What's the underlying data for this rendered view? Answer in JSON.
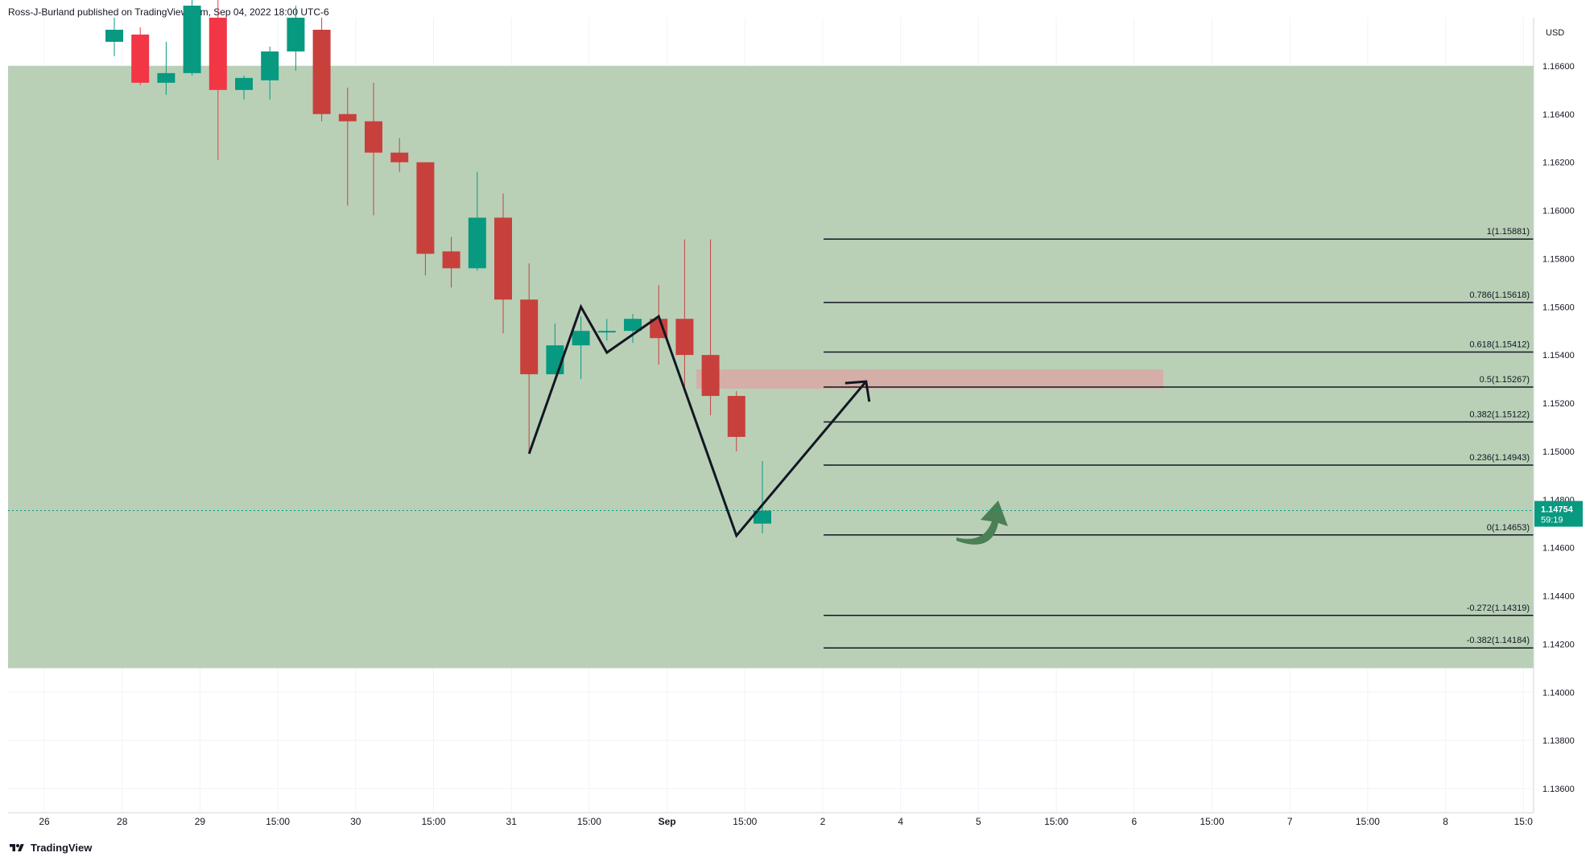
{
  "header": {
    "publisher_text": "Ross-J-Burland published on TradingView.com, Sep 04, 2022 18:00 UTC-6"
  },
  "footer": {
    "brand": "TradingView"
  },
  "colors": {
    "up": "#089981",
    "down": "#c8403c",
    "down_bright": "#f23645",
    "zone_fill": "#b9d0b7",
    "resistance_fill": "#d8a8a4",
    "fib_line": "#131722",
    "pattern_line": "#131722",
    "arrow": "#4b7f55",
    "price_badge": "#089981"
  },
  "chart_data": {
    "type": "candlestick",
    "currency_label": "USD",
    "y_range": [
      1.135,
      1.168
    ],
    "y_ticks": [
      "1.13600",
      "1.13800",
      "1.14000",
      "1.14200",
      "1.14400",
      "1.14600",
      "1.14800",
      "1.15000",
      "1.15200",
      "1.15400",
      "1.15600",
      "1.15800",
      "1.16000",
      "1.16200",
      "1.16400",
      "1.16600"
    ],
    "x_ticks": [
      "26",
      "28",
      "29",
      "15:00",
      "30",
      "15:00",
      "31",
      "15:00",
      "Sep",
      "15:00",
      "2",
      "4",
      "5",
      "15:00",
      "6",
      "15:00",
      "7",
      "15:00",
      "8",
      "15:0"
    ],
    "x_tick_index": [
      0,
      1,
      2,
      3,
      4,
      5,
      6,
      7,
      8,
      9,
      10,
      11,
      12,
      13,
      14,
      15,
      16,
      17,
      18,
      19
    ],
    "current_price": "1.14754",
    "countdown": "59:19",
    "candles": [
      {
        "o": 1.167,
        "h": 1.168,
        "l": 1.1664,
        "c": 1.1675
      },
      {
        "o": 1.1673,
        "h": 1.1676,
        "l": 1.1652,
        "c": 1.1653
      },
      {
        "o": 1.1653,
        "h": 1.167,
        "l": 1.1648,
        "c": 1.1657
      },
      {
        "o": 1.1657,
        "h": 1.169,
        "l": 1.1656,
        "c": 1.1685
      },
      {
        "o": 1.168,
        "h": 1.169,
        "l": 1.1621,
        "c": 1.165
      },
      {
        "o": 1.165,
        "h": 1.1656,
        "l": 1.1646,
        "c": 1.1655
      },
      {
        "o": 1.1654,
        "h": 1.1668,
        "l": 1.1646,
        "c": 1.1666
      },
      {
        "o": 1.1666,
        "h": 1.1685,
        "l": 1.1658,
        "c": 1.168
      },
      {
        "o": 1.1675,
        "h": 1.168,
        "l": 1.1637,
        "c": 1.164
      },
      {
        "o": 1.164,
        "h": 1.1651,
        "l": 1.1602,
        "c": 1.1637
      },
      {
        "o": 1.1637,
        "h": 1.1653,
        "l": 1.1598,
        "c": 1.1624
      },
      {
        "o": 1.1624,
        "h": 1.163,
        "l": 1.1616,
        "c": 1.162
      },
      {
        "o": 1.162,
        "h": 1.162,
        "l": 1.1573,
        "c": 1.1582
      },
      {
        "o": 1.1583,
        "h": 1.1589,
        "l": 1.1568,
        "c": 1.1576
      },
      {
        "o": 1.1576,
        "h": 1.1616,
        "l": 1.1575,
        "c": 1.1597
      },
      {
        "o": 1.1597,
        "h": 1.1607,
        "l": 1.1549,
        "c": 1.1563
      },
      {
        "o": 1.1563,
        "h": 1.1578,
        "l": 1.15,
        "c": 1.1532
      },
      {
        "o": 1.1532,
        "h": 1.1553,
        "l": 1.1532,
        "c": 1.1544
      },
      {
        "o": 1.1544,
        "h": 1.1556,
        "l": 1.153,
        "c": 1.155
      },
      {
        "o": 1.155,
        "h": 1.1555,
        "l": 1.1546,
        "c": 1.155
      },
      {
        "o": 1.155,
        "h": 1.1557,
        "l": 1.1545,
        "c": 1.1555
      },
      {
        "o": 1.1555,
        "h": 1.1569,
        "l": 1.1536,
        "c": 1.1547
      },
      {
        "o": 1.1555,
        "h": 1.1588,
        "l": 1.1525,
        "c": 1.154
      },
      {
        "o": 1.154,
        "h": 1.1588,
        "l": 1.1515,
        "c": 1.1523
      },
      {
        "o": 1.1523,
        "h": 1.1525,
        "l": 1.15,
        "c": 1.1506
      },
      {
        "o": 1.147,
        "h": 1.1496,
        "l": 1.1466,
        "c": 1.14754
      }
    ],
    "fib_levels": [
      {
        "label": "1(1.15881)",
        "value": 1.15881
      },
      {
        "label": "0.786(1.15618)",
        "value": 1.15618
      },
      {
        "label": "0.618(1.15412)",
        "value": 1.15412
      },
      {
        "label": "0.5(1.15267)",
        "value": 1.15267
      },
      {
        "label": "0.382(1.15122)",
        "value": 1.15122
      },
      {
        "label": "0.236(1.14943)",
        "value": 1.14943
      },
      {
        "label": "0(1.14653)",
        "value": 1.14653
      },
      {
        "label": "-0.272(1.14319)",
        "value": 1.14319
      },
      {
        "label": "-0.382(1.14184)",
        "value": 1.14184
      }
    ],
    "green_zone": {
      "y_top": 1.166,
      "y_bottom": 1.141
    },
    "resistance_zone": {
      "y_top": 1.1534,
      "y_bottom": 1.1526
    },
    "pattern_path": [
      {
        "x": 16.0,
        "y": 1.1499
      },
      {
        "x": 18.0,
        "y": 1.156
      },
      {
        "x": 19.0,
        "y": 1.1541
      },
      {
        "x": 21.0,
        "y": 1.1556
      },
      {
        "x": 24.0,
        "y": 1.1465
      },
      {
        "x": 29.0,
        "y": 1.1529
      }
    ]
  }
}
